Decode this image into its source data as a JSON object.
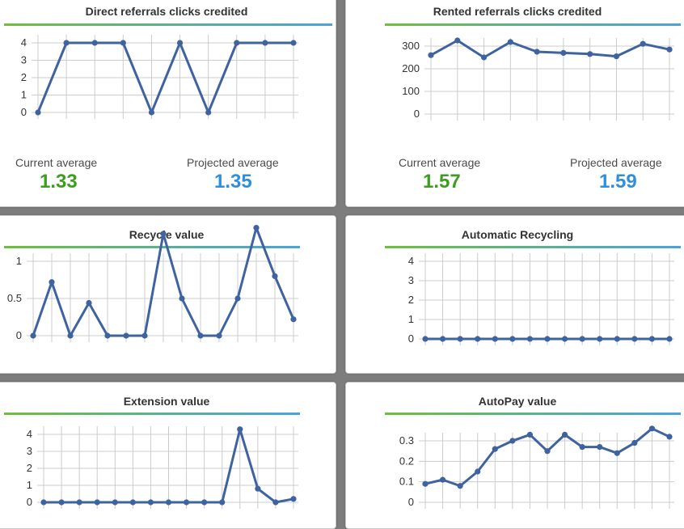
{
  "colors": {
    "line": "#3f63a0",
    "marker": "#3f63a0",
    "grid": "#cccccc",
    "current_value": "#3c9e1e",
    "projected_value": "#2f8fdc",
    "rule_start": "#6fbf3c",
    "rule_end": "#4aa4dc"
  },
  "labels": {
    "current_average": "Current average",
    "projected_average": "Projected average"
  },
  "stats": {
    "direct": {
      "current": "1.33",
      "projected": "1.35"
    },
    "rented": {
      "current": "1.57",
      "projected": "1.59"
    }
  },
  "chart_data": [
    {
      "id": "direct",
      "type": "line",
      "title": "Direct referrals clicks credited",
      "ylim": [
        0,
        4
      ],
      "yticks": [
        "0",
        "1",
        "2",
        "3",
        "4"
      ],
      "values": [
        0,
        4,
        4,
        4,
        0,
        4,
        0,
        4,
        4,
        4
      ],
      "grid": true
    },
    {
      "id": "rented",
      "type": "line",
      "title": "Rented referrals clicks credited",
      "ylim": [
        0,
        300
      ],
      "yticks": [
        "0",
        "100",
        "200",
        "300"
      ],
      "values": [
        260,
        325,
        250,
        318,
        275,
        270,
        265,
        255,
        310,
        285
      ],
      "grid": true
    },
    {
      "id": "recycle",
      "type": "line",
      "title": "Recycle value",
      "ylim": [
        0,
        1
      ],
      "yticks": [
        "0",
        "0.5",
        "1"
      ],
      "values": [
        0,
        0.72,
        0,
        0.44,
        0,
        0,
        0,
        1.37,
        0.5,
        0,
        0,
        0.5,
        1.45,
        0.8,
        0.22
      ],
      "grid": true
    },
    {
      "id": "autorecycle",
      "type": "line",
      "title": "Automatic Recycling",
      "ylim": [
        0,
        4
      ],
      "yticks": [
        "0",
        "1",
        "2",
        "3",
        "4"
      ],
      "values": [
        0,
        0,
        0,
        0,
        0,
        0,
        0,
        0,
        0,
        0,
        0,
        0,
        0,
        0,
        0
      ],
      "grid": true
    },
    {
      "id": "extension",
      "type": "line",
      "title": "Extension value",
      "ylim": [
        0,
        4
      ],
      "yticks": [
        "0",
        "1",
        "2",
        "3",
        "4"
      ],
      "values": [
        0,
        0,
        0,
        0,
        0,
        0,
        0,
        0,
        0,
        0,
        0,
        4.3,
        0.8,
        0,
        0.2
      ],
      "grid": true
    },
    {
      "id": "autopay",
      "type": "line",
      "title": "AutoPay value",
      "ylim": [
        0,
        0.3
      ],
      "yticks": [
        "0",
        "0.1",
        "0.2",
        "0.3"
      ],
      "values": [
        0.09,
        0.11,
        0.08,
        0.15,
        0.26,
        0.3,
        0.33,
        0.25,
        0.33,
        0.27,
        0.27,
        0.24,
        0.29,
        0.36,
        0.32
      ],
      "grid": true
    }
  ]
}
